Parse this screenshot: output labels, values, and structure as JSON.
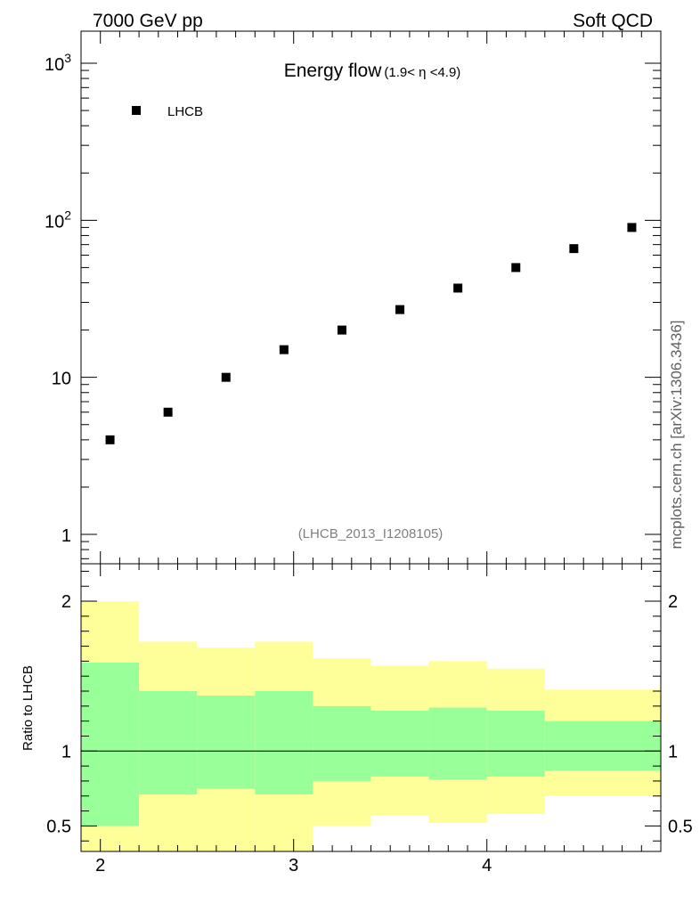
{
  "header": {
    "left_label": "7000 GeV pp",
    "right_label": "Soft QCD",
    "side_label": "mcplots.cern.ch [arXiv:1306.3436]"
  },
  "chart_data": [
    {
      "type": "scatter",
      "title_main": "Energy flow",
      "title_sub": "(1.9< η <4.9)",
      "analysis_label": "(LHCB_2013_I1208105)",
      "yscale": "log",
      "xlim": [
        1.9,
        4.9
      ],
      "ylim": [
        0.65,
        1600
      ],
      "yticks": [
        {
          "value": 1,
          "base": "1",
          "exp": ""
        },
        {
          "value": 10,
          "base": "10",
          "exp": ""
        },
        {
          "value": 100,
          "base": "10",
          "exp": "2"
        },
        {
          "value": 1000,
          "base": "10",
          "exp": "3"
        }
      ],
      "legend": {
        "position": "top-left"
      },
      "series": [
        {
          "name": "LHCB",
          "marker": "square",
          "color": "#000000",
          "x": [
            2.05,
            2.35,
            2.65,
            2.95,
            3.25,
            3.55,
            3.85,
            4.15,
            4.45,
            4.75
          ],
          "y": [
            4.0,
            6.0,
            10.0,
            15.0,
            20.0,
            27.0,
            37.0,
            50.0,
            66.0,
            90.0
          ]
        }
      ]
    },
    {
      "type": "area",
      "ylabel": "Ratio to LHCB",
      "xlim": [
        1.9,
        4.9
      ],
      "ylim": [
        0.33,
        2.25
      ],
      "xticks": [
        {
          "value": 2,
          "label": "2"
        },
        {
          "value": 3,
          "label": "3"
        },
        {
          "value": 4,
          "label": "4"
        }
      ],
      "yticks": [
        {
          "value": 0.5,
          "label": "0.5"
        },
        {
          "value": 1,
          "label": "1"
        },
        {
          "value": 2,
          "label": "2"
        }
      ],
      "reference_line": 1,
      "bins": [
        {
          "x0": 1.9,
          "x1": 2.2,
          "inner": [
            0.5,
            1.59
          ],
          "outer": [
            0.33,
            2.0
          ]
        },
        {
          "x0": 2.2,
          "x1": 2.5,
          "inner": [
            0.71,
            1.4
          ],
          "outer": [
            0.33,
            1.73
          ]
        },
        {
          "x0": 2.5,
          "x1": 2.8,
          "inner": [
            0.75,
            1.37
          ],
          "outer": [
            0.33,
            1.69
          ]
        },
        {
          "x0": 2.8,
          "x1": 3.1,
          "inner": [
            0.71,
            1.4
          ],
          "outer": [
            0.33,
            1.73
          ]
        },
        {
          "x0": 3.1,
          "x1": 3.4,
          "inner": [
            0.8,
            1.3
          ],
          "outer": [
            0.5,
            1.62
          ]
        },
        {
          "x0": 3.4,
          "x1": 3.7,
          "inner": [
            0.83,
            1.27
          ],
          "outer": [
            0.57,
            1.57
          ]
        },
        {
          "x0": 3.7,
          "x1": 4.0,
          "inner": [
            0.81,
            1.29
          ],
          "outer": [
            0.52,
            1.6
          ]
        },
        {
          "x0": 4.0,
          "x1": 4.3,
          "inner": [
            0.83,
            1.27
          ],
          "outer": [
            0.58,
            1.55
          ]
        },
        {
          "x0": 4.3,
          "x1": 4.9,
          "inner": [
            0.87,
            1.2
          ],
          "outer": [
            0.7,
            1.41
          ]
        }
      ],
      "band_colors": {
        "inner": "#99ff99",
        "outer": "#ffff99"
      }
    }
  ]
}
